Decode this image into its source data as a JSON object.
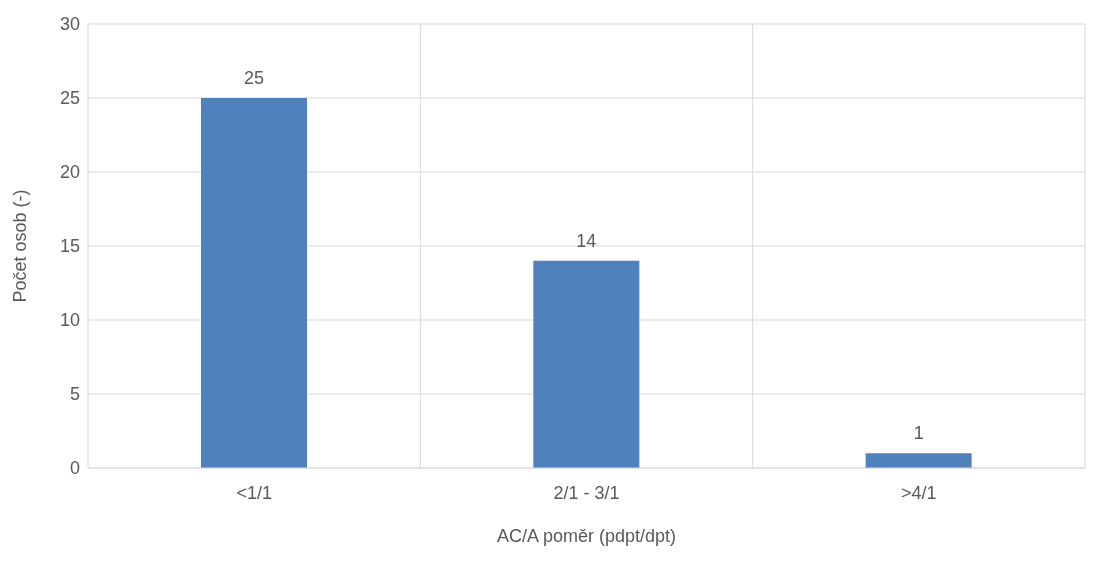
{
  "chart_data": {
    "type": "bar",
    "xlabel": "AC/A poměr (pdpt/dpt)",
    "ylabel": "Počet osob (-)",
    "categories": [
      "<1/1",
      "2/1 - 3/1",
      ">4/1"
    ],
    "values": [
      25,
      14,
      1
    ],
    "color": "#4f81bd",
    "ylim": [
      0,
      30
    ],
    "yticks": [
      0,
      5,
      10,
      15,
      20,
      25,
      30
    ],
    "grid": true,
    "data_labels": true
  }
}
